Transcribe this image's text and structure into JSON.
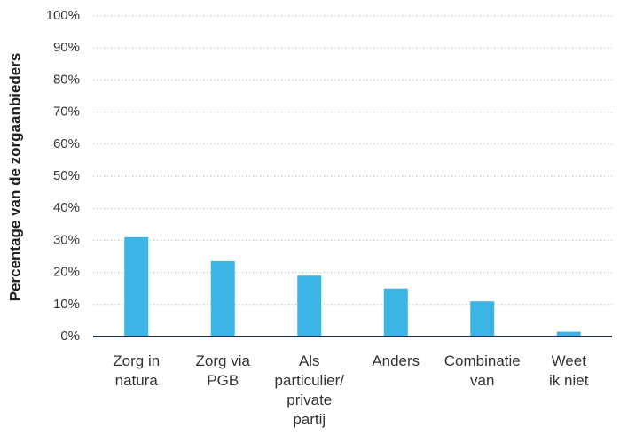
{
  "chart_data": {
    "type": "bar",
    "y_label": "Percentage van de zorgaanbieders",
    "categories": [
      "Zorg in\nnatura",
      "Zorg via\nPGB",
      "Als\nparticulier/\nprivate\npartij",
      "Anders",
      "Combinatie\nvan",
      "Weet\nik niet"
    ],
    "values": [
      31,
      23.5,
      19,
      15,
      11,
      1.5
    ],
    "color": "#3db4e6",
    "ylim": [
      0,
      100
    ],
    "yticks": [
      {
        "value": 0,
        "label": "0%"
      },
      {
        "value": 10,
        "label": "10%"
      },
      {
        "value": 20,
        "label": "20%"
      },
      {
        "value": 30,
        "label": "30%"
      },
      {
        "value": 40,
        "label": "40%"
      },
      {
        "value": 50,
        "label": "50%"
      },
      {
        "value": 60,
        "label": "60%"
      },
      {
        "value": 70,
        "label": "70%"
      },
      {
        "value": 80,
        "label": "80%"
      },
      {
        "value": 90,
        "label": "90%"
      },
      {
        "value": 100,
        "label": "100%"
      }
    ],
    "grid": true
  }
}
